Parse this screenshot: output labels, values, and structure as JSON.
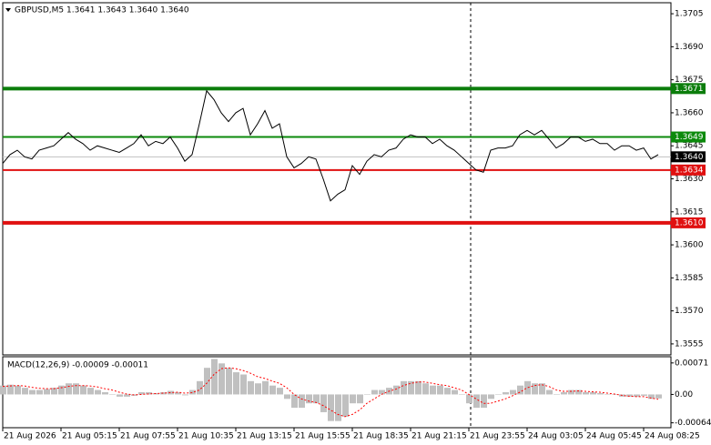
{
  "chart_data": [
    {
      "type": "line",
      "title": "GBPUSD,M5  1.3641 1.3643 1.3640 1.3640",
      "categories": [
        "21 Aug 2026",
        null,
        null,
        null,
        null,
        null,
        null,
        null,
        "21 Aug 05:15",
        null,
        null,
        null,
        null,
        null,
        null,
        null,
        "21 Aug 07:55",
        null,
        null,
        null,
        null,
        null,
        null,
        null,
        "21 Aug 10:35",
        null,
        null,
        null,
        null,
        null,
        null,
        null,
        "21 Aug 13:15",
        null,
        null,
        null,
        null,
        null,
        null,
        null,
        "21 Aug 15:55",
        null,
        null,
        null,
        null,
        null,
        null,
        null,
        "21 Aug 18:35",
        null,
        null,
        null,
        null,
        null,
        null,
        null,
        "21 Aug 21:15",
        null,
        null,
        null,
        null,
        null,
        null,
        null,
        "21 Aug 23:55",
        null,
        null,
        null,
        null,
        null,
        null,
        null,
        "24 Aug 03:05",
        null,
        null,
        null,
        null,
        null,
        null,
        null,
        "24 Aug 05:45",
        null,
        null,
        null,
        null,
        null,
        null,
        null,
        "24 Aug 08:25",
        null,
        null
      ],
      "series": [
        {
          "color": "#000000",
          "values": [
            1.3637,
            1.3641,
            1.3643,
            1.364,
            1.3639,
            1.3643,
            1.3644,
            1.3645,
            1.3648,
            1.3651,
            1.3648,
            1.3646,
            1.3643,
            1.3645,
            1.3644,
            1.3643,
            1.3642,
            1.3644,
            1.3646,
            1.365,
            1.3645,
            1.3647,
            1.3646,
            1.3649,
            1.3644,
            1.3638,
            1.3641,
            1.3655,
            1.367,
            1.3666,
            1.366,
            1.3656,
            1.366,
            1.3662,
            1.365,
            1.3655,
            1.3661,
            1.3653,
            1.3655,
            1.364,
            1.3635,
            1.3637,
            1.364,
            1.3639,
            1.363,
            1.362,
            1.3623,
            1.3625,
            1.3636,
            1.3632,
            1.3638,
            1.3641,
            1.364,
            1.3643,
            1.3644,
            1.3648,
            1.365,
            1.3649,
            1.3649,
            1.3646,
            1.3648,
            1.3645,
            1.3643,
            1.364,
            1.3637,
            1.3634,
            1.3633,
            1.3643,
            1.3644,
            1.3644,
            1.3645,
            1.365,
            1.3652,
            1.365,
            1.3652,
            1.3648,
            1.3644,
            1.3646,
            1.3649,
            1.3649,
            1.3647,
            1.3648,
            1.3646,
            1.3646,
            1.3643,
            1.3645,
            1.3645,
            1.3643,
            1.3644,
            1.3639,
            1.3641
          ]
        }
      ],
      "levels": [
        {
          "value": 1.3671,
          "color": "#0b7d0b",
          "thick": true
        },
        {
          "value": 1.3649,
          "color": "#0b8a0b",
          "thick": false
        },
        {
          "value": 1.3634,
          "color": "#e01010",
          "thick": false
        },
        {
          "value": 1.361,
          "label": "1.3610",
          "color": "#e01010",
          "thick": true
        },
        {
          "value": 1.364,
          "label": "1.3640",
          "color": "#000000",
          "thick": false
        }
      ],
      "ylim": [
        1.355,
        1.371
      ],
      "yticks": [
        1.3705,
        {
          "value": 1.369,
          "label": "1.3690"
        },
        1.3675,
        {
          "value": 1.366,
          "label": "1.3660"
        },
        1.3645,
        {
          "value": 1.363,
          "label": "1.3630"
        },
        1.3615,
        {
          "value": 1.36,
          "label": "1.3600"
        },
        1.3585,
        {
          "value": 1.357,
          "label": "1.3570"
        },
        1.3555
      ]
    },
    {
      "type": "macd",
      "title": "MACD(12,26,9) -0.00009 -0.00011",
      "series": [
        {
          "color": "#c0c0c0",
          "values": [
            0.0002,
            0.00022,
            0.0002,
            0.00015,
            0.0001,
            0.0001,
            0.00012,
            0.00015,
            0.0002,
            0.00025,
            0.00025,
            0.0002,
            0.00015,
            0.0001,
            5e-05,
            0,
            -5e-05,
            -5e-05,
            -3e-05,
            5e-05,
            5e-05,
            3e-05,
            5e-05,
            8e-05,
            5e-05,
            -2e-05,
            0.0001,
            0.0003,
            0.0006,
            0.0008,
            0.0007,
            0.0006,
            0.0005,
            0.00045,
            0.0003,
            0.00025,
            0.0003,
            0.0002,
            0.00015,
            -0.0001,
            -0.0003,
            -0.0003,
            -0.0002,
            -0.0002,
            -0.0004,
            -0.0006,
            -0.0006,
            -0.0005,
            -0.0002,
            -0.0002,
            0,
            0.0001,
            0.0001,
            0.00015,
            0.0002,
            0.0003,
            0.0003,
            0.0003,
            0.00025,
            0.0002,
            0.0002,
            0.00015,
            0.0001,
            0,
            -0.0002,
            -0.0003,
            -0.0003,
            -0.0001,
            0,
            5e-05,
            0.0001,
            0.0002,
            0.0003,
            0.00025,
            0.00025,
            0.0001,
            0,
            5e-05,
            0.0001,
            0.0001,
            5e-05,
            5e-05,
            3e-05,
            0,
            0,
            -5e-05,
            -5e-05,
            -5e-05,
            -3e-05,
            -0.0001,
            -9e-05
          ]
        },
        {
          "color": "#ff0000",
          "values": [
            0.00018,
            0.00019,
            0.0002,
            0.00019,
            0.00016,
            0.00014,
            0.00013,
            0.00013,
            0.00015,
            0.00018,
            0.0002,
            0.0002,
            0.00019,
            0.00017,
            0.00013,
            0.0001,
            5e-05,
            1e-05,
            -1e-05,
            0,
            1e-05,
            2e-05,
            3e-05,
            4e-05,
            5e-05,
            3e-05,
            4e-05,
            0.0001,
            0.00025,
            0.00045,
            0.00058,
            0.0006,
            0.00058,
            0.00054,
            0.00048,
            0.0004,
            0.00036,
            0.0003,
            0.00025,
            0.00015,
            0,
            -0.0001,
            -0.00015,
            -0.00018,
            -0.00025,
            -0.00035,
            -0.00045,
            -0.0005,
            -0.00045,
            -0.00035,
            -0.0002,
            -0.0001,
            0,
            7e-05,
            0.00012,
            0.0002,
            0.00025,
            0.00028,
            0.00028,
            0.00025,
            0.00022,
            0.0002,
            0.00015,
            0.0001,
            0,
            -0.0001,
            -0.0002,
            -0.0002,
            -0.00015,
            -0.0001,
            -3e-05,
            5e-05,
            0.00015,
            0.0002,
            0.00022,
            0.00018,
            0.0001,
            7e-05,
            7e-05,
            8e-05,
            7e-05,
            6e-05,
            5e-05,
            3e-05,
            1e-05,
            -2e-05,
            -4e-05,
            -5e-05,
            -5e-05,
            -8e-05,
            -0.00011
          ]
        }
      ],
      "ylim": [
        -0.00075,
        0.00085
      ],
      "yticks": [
        0.00071,
        {
          "value": 0,
          "label": "0.00"
        },
        -0.00064
      ]
    }
  ]
}
